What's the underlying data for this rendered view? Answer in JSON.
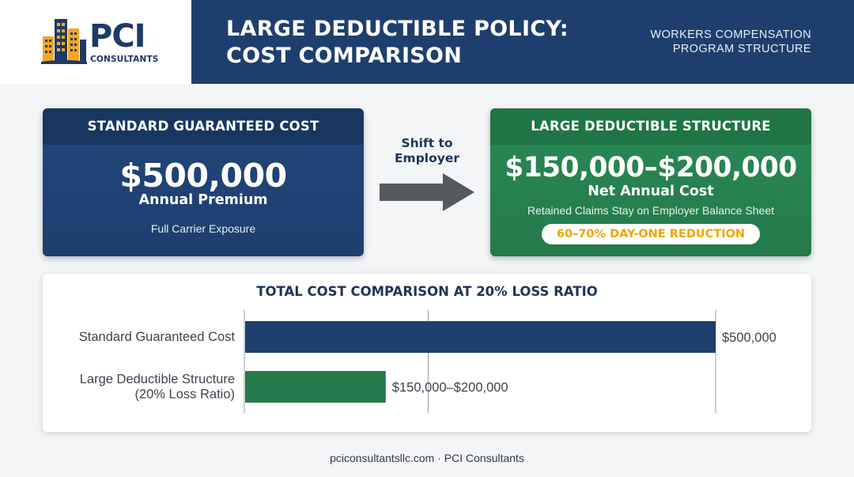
{
  "header": {
    "logo_text": "PCI",
    "logo_subtext": "CONSULTANTS",
    "title_line1": "LARGE DEDUCTIBLE POLICY:",
    "title_line2": "COST COMPARISON",
    "subtitle_line1": "WORKERS COMPENSATION",
    "subtitle_line2": "PROGRAM STRUCTURE"
  },
  "standard_card": {
    "heading": "STANDARD GUARANTEED COST",
    "amount": "$500,000",
    "label": "Annual Premium",
    "note": "Full Carrier Exposure"
  },
  "arrow": {
    "line1": "Shift to",
    "line2": "Employer"
  },
  "deductible_card": {
    "heading": "LARGE DEDUCTIBLE STRUCTURE",
    "amount": "$150,000–$200,000",
    "label": "Net Annual Cost",
    "note": "Retained Claims Stay on Employer Balance Sheet",
    "badge": "60–70% DAY-ONE REDUCTION"
  },
  "colors": {
    "navy": "#1e3f6e",
    "green": "#247a4a",
    "accent_orange": "#f0a500"
  },
  "chart_data": {
    "type": "bar",
    "orientation": "horizontal",
    "title": "TOTAL COST COMPARISON AT 20% LOSS RATIO",
    "categories": [
      [
        "Standard Guaranteed Cost"
      ],
      [
        "Large Deductible Structure",
        "(20% Loss Ratio)"
      ]
    ],
    "values": [
      500000,
      150000
    ],
    "value_labels": [
      "$500,000",
      "$150,000–$200,000"
    ],
    "bar_colors": [
      "#1e3f6e",
      "#247a4a"
    ],
    "xlim": [
      0,
      500000
    ],
    "grid": true,
    "gridlines": [
      0,
      195000,
      500000
    ]
  },
  "footer": {
    "text": "pciconsultantsllc.com · PCI Consultants"
  }
}
